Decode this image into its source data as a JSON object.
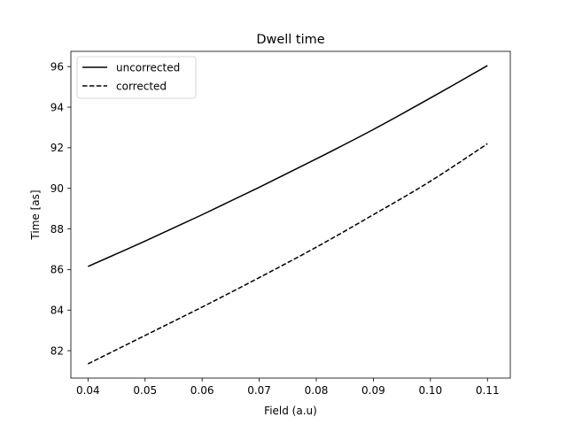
{
  "chart_data": {
    "type": "line",
    "title": "Dwell time",
    "xlabel": "Field (a.u)",
    "ylabel": "Time [as]",
    "xlim": [
      0.037,
      0.114
    ],
    "ylim": [
      80.65,
      96.75
    ],
    "xticks": [
      0.04,
      0.05,
      0.06,
      0.07,
      0.08,
      0.09,
      0.1,
      0.11
    ],
    "xtick_labels": [
      "0.04",
      "0.05",
      "0.06",
      "0.07",
      "0.08",
      "0.09",
      "0.10",
      "0.11"
    ],
    "yticks": [
      82,
      84,
      86,
      88,
      90,
      92,
      94,
      96
    ],
    "ytick_labels": [
      "82",
      "84",
      "86",
      "88",
      "90",
      "92",
      "94",
      "96"
    ],
    "grid": false,
    "legend_position": "top-left",
    "series": [
      {
        "name": "uncorrected",
        "style": "solid",
        "color": "#000000",
        "x": [
          0.04,
          0.05,
          0.06,
          0.07,
          0.08,
          0.09,
          0.1,
          0.11
        ],
        "y": [
          86.15,
          87.4,
          88.7,
          90.05,
          91.45,
          92.9,
          94.45,
          96.05
        ]
      },
      {
        "name": "corrected",
        "style": "dashed",
        "color": "#000000",
        "x": [
          0.04,
          0.05,
          0.06,
          0.07,
          0.08,
          0.09,
          0.1,
          0.11
        ],
        "y": [
          81.35,
          82.75,
          84.15,
          85.6,
          87.1,
          88.7,
          90.35,
          92.2
        ]
      }
    ]
  }
}
